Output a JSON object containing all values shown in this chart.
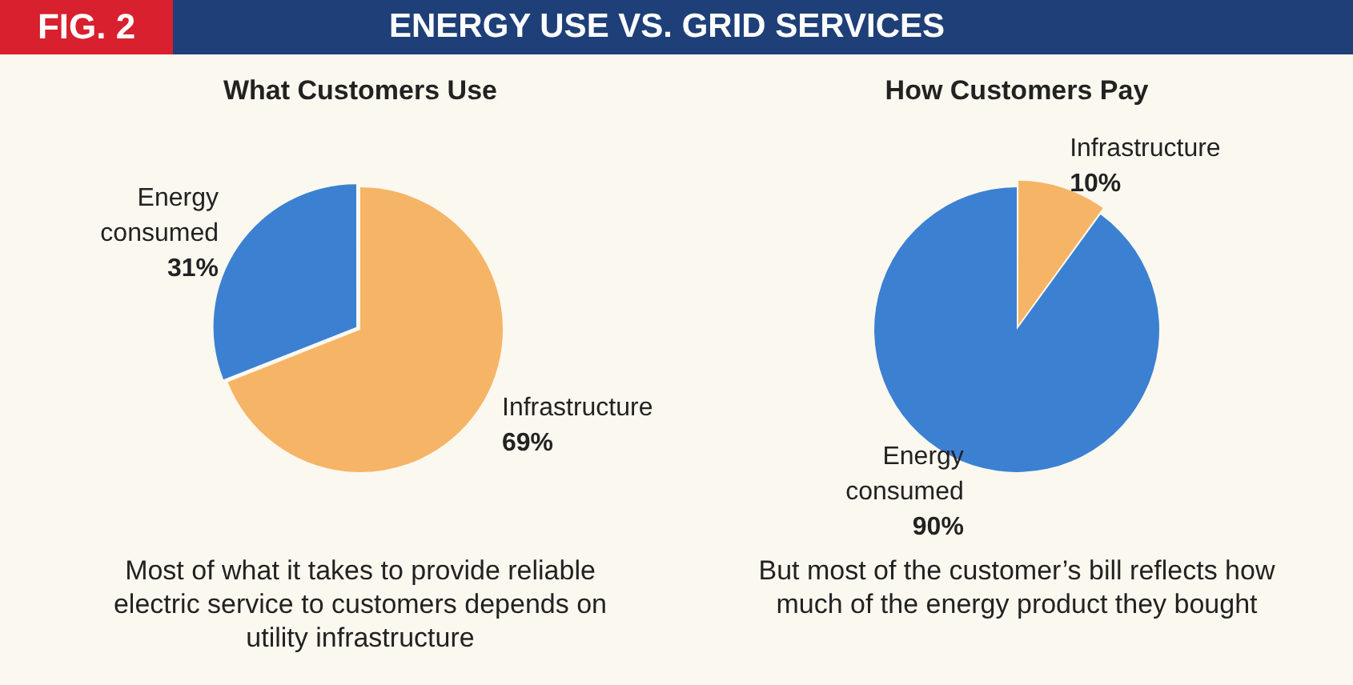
{
  "chart_data": [
    {
      "type": "other",
      "annotations": [
        "FIG. 2",
        "ENERGY USE VS. GRID SERVICES"
      ]
    },
    {
      "type": "pie",
      "title": "What Customers Use",
      "categories": [
        "Infrastructure",
        "Energy consumed"
      ],
      "values": [
        69,
        31
      ],
      "colors": [
        "#f6b466",
        "#3c80d2"
      ],
      "value_labels": [
        "69%",
        "31%"
      ],
      "annotations": [
        "Most of what it takes to provide reliable electric service to customers depends on utility infrastructure"
      ]
    },
    {
      "type": "pie",
      "title": "How Customers Pay",
      "categories": [
        "Infrastructure",
        "Energy consumed"
      ],
      "values": [
        10,
        90
      ],
      "colors": [
        "#f6b466",
        "#3c80d2"
      ],
      "value_labels": [
        "10%",
        "90%"
      ],
      "annotations": [
        "But most of the customer’s bill reflects how much of the energy product they bought"
      ]
    }
  ]
}
